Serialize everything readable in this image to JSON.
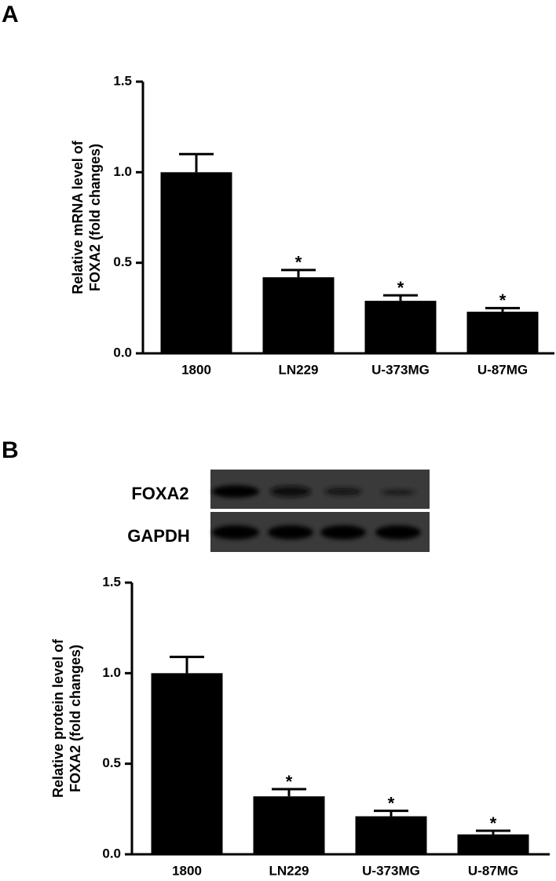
{
  "chart_data": [
    {
      "type": "bar",
      "panel_label": "A",
      "ylabel": [
        "Relative mRNA level of",
        "FOXA2 (fold changes)"
      ],
      "categories": [
        "1800",
        "LN229",
        "U-373MG",
        "U-87MG"
      ],
      "values": [
        1.0,
        0.42,
        0.29,
        0.23
      ],
      "errors": [
        0.1,
        0.04,
        0.03,
        0.02
      ],
      "significance": [
        null,
        "*",
        "*",
        "*"
      ],
      "color": "#000000",
      "ylim": [
        0,
        1.5
      ],
      "yticks": [
        {
          "value": 0,
          "label": "0.0"
        },
        0.5,
        {
          "value": 1,
          "label": "1.0"
        },
        1.5
      ]
    },
    {
      "type": "bar",
      "panel_label": "B",
      "blot_labels": [
        "FOXA2",
        "GAPDH"
      ],
      "ylabel": [
        "Relative protein level of",
        "FOXA2 (fold changes)"
      ],
      "categories": [
        "1800",
        "LN229",
        "U-373MG",
        "U-87MG"
      ],
      "values": [
        1.0,
        0.32,
        0.21,
        0.11
      ],
      "errors": [
        0.09,
        0.04,
        0.03,
        0.02
      ],
      "significance": [
        null,
        "*",
        "*",
        "*"
      ],
      "color": "#000000",
      "ylim": [
        0,
        1.5
      ],
      "yticks": [
        {
          "value": 0,
          "label": "0.0"
        },
        0.5,
        {
          "value": 1,
          "label": "1.0"
        },
        1.5
      ]
    }
  ]
}
